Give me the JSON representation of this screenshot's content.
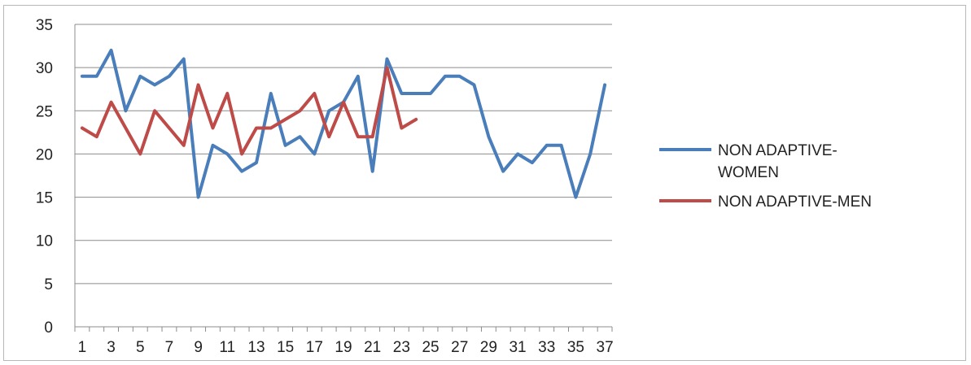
{
  "chart_data": {
    "type": "line",
    "title": "",
    "xlabel": "",
    "ylabel": "",
    "ylim": [
      0,
      35
    ],
    "yticks": [
      0,
      5,
      10,
      15,
      20,
      25,
      30,
      35
    ],
    "xlim": [
      1,
      37
    ],
    "xtick_labels": [
      "1",
      "3",
      "5",
      "7",
      "9",
      "11",
      "13",
      "15",
      "17",
      "19",
      "21",
      "23",
      "25",
      "27",
      "29",
      "31",
      "33",
      "35",
      "37"
    ],
    "grid": true,
    "legend_position": "right",
    "series": [
      {
        "name_lines": [
          "NON ADAPTIVE-",
          "WOMEN"
        ],
        "color": "#4a7ebb",
        "x": [
          1,
          2,
          3,
          4,
          5,
          6,
          7,
          8,
          9,
          10,
          11,
          12,
          13,
          14,
          15,
          16,
          17,
          18,
          19,
          20,
          21,
          22,
          23,
          24,
          25,
          26,
          27,
          28,
          29,
          30,
          31,
          32,
          33,
          34,
          35,
          36,
          37
        ],
        "values": [
          29,
          29,
          32,
          25,
          29,
          28,
          29,
          31,
          15,
          21,
          20,
          18,
          19,
          27,
          21,
          22,
          20,
          25,
          26,
          29,
          18,
          31,
          27,
          27,
          27,
          29,
          29,
          28,
          22,
          18,
          20,
          19,
          21,
          21,
          15,
          20,
          28
        ]
      },
      {
        "name_lines": [
          "NON ADAPTIVE-MEN"
        ],
        "color": "#be4b48",
        "x": [
          1,
          2,
          3,
          4,
          5,
          6,
          7,
          8,
          9,
          10,
          11,
          12,
          13,
          14,
          15,
          16,
          17,
          18,
          19,
          20,
          21,
          22,
          23,
          24
        ],
        "values": [
          23,
          22,
          26,
          23,
          20,
          25,
          23,
          21,
          28,
          23,
          27,
          20,
          23,
          23,
          24,
          25,
          27,
          22,
          26,
          22,
          22,
          30,
          23,
          24
        ]
      }
    ]
  }
}
